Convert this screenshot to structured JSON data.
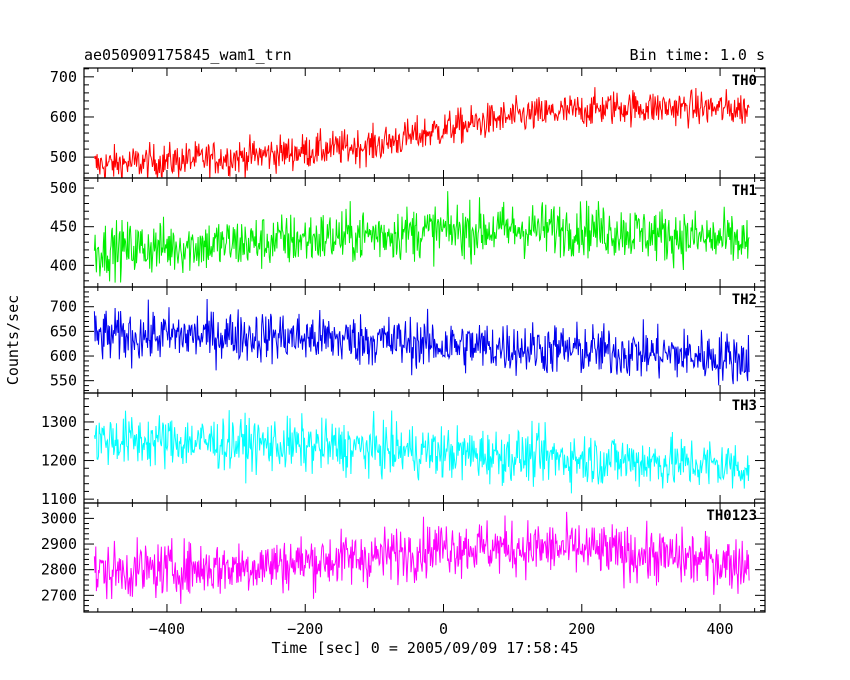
{
  "header": {
    "left": "ae050909175845_wam1_trn",
    "right": "Bin time: 1.0 s"
  },
  "chart_data": {
    "type": "line",
    "xlabel": "Time [sec] 0 = 2005/09/09 17:58:45",
    "ylabel": "Counts/sec",
    "xlim": [
      -520,
      465
    ],
    "x_ticks": [
      -400,
      -200,
      0,
      200,
      400
    ],
    "x_tick_labels": [
      "−400",
      "−200",
      "0",
      "200",
      "400"
    ],
    "x_range": [
      -505,
      442
    ],
    "bin_time_s": 1.0,
    "panels": [
      {
        "name": "TH0",
        "color": "#ff0000",
        "ylim": [
          448,
          722
        ],
        "ticks": [
          500,
          600,
          700
        ],
        "trend": [
          [
            -505,
            480
          ],
          [
            -300,
            500
          ],
          [
            -100,
            530
          ],
          [
            0,
            570
          ],
          [
            100,
            600
          ],
          [
            250,
            625
          ],
          [
            442,
            620
          ]
        ],
        "spread": 35
      },
      {
        "name": "TH1",
        "color": "#00ee00",
        "ylim": [
          372,
          513
        ],
        "ticks": [
          400,
          450,
          500
        ],
        "trend": [
          [
            -505,
            420
          ],
          [
            -300,
            428
          ],
          [
            -100,
            440
          ],
          [
            0,
            445
          ],
          [
            200,
            448
          ],
          [
            442,
            430
          ]
        ],
        "spread": 28
      },
      {
        "name": "TH2",
        "color": "#0000ee",
        "ylim": [
          525,
          740
        ],
        "ticks": [
          550,
          600,
          650,
          700
        ],
        "trend": [
          [
            -505,
            640
          ],
          [
            -300,
            642
          ],
          [
            -100,
            632
          ],
          [
            0,
            622
          ],
          [
            200,
            612
          ],
          [
            442,
            595
          ]
        ],
        "spread": 42
      },
      {
        "name": "TH3",
        "color": "#00ffff",
        "ylim": [
          1090,
          1375
        ],
        "ticks": [
          1100,
          1200,
          1300
        ],
        "trend": [
          [
            -505,
            1255
          ],
          [
            -300,
            1245
          ],
          [
            -100,
            1230
          ],
          [
            0,
            1220
          ],
          [
            200,
            1205
          ],
          [
            442,
            1185
          ]
        ],
        "spread": 55
      },
      {
        "name": "TH0123",
        "color": "#ff00ff",
        "ylim": [
          2635,
          3060
        ],
        "ticks": [
          2700,
          2800,
          2900,
          3000
        ],
        "trend": [
          [
            -505,
            2790
          ],
          [
            -300,
            2810
          ],
          [
            -100,
            2850
          ],
          [
            0,
            2890
          ],
          [
            200,
            2880
          ],
          [
            442,
            2820
          ]
        ],
        "spread": 85
      }
    ]
  }
}
